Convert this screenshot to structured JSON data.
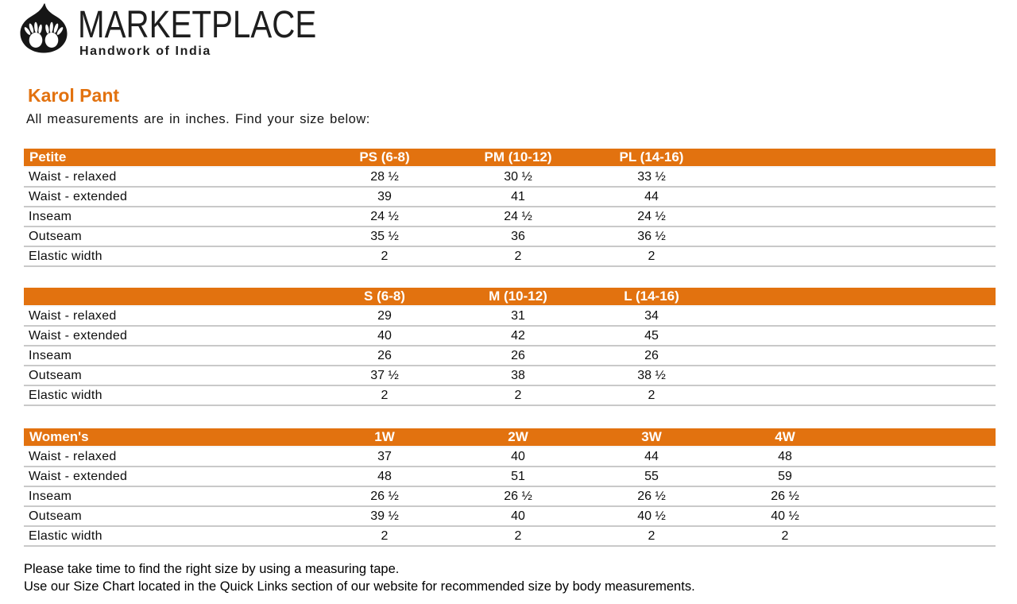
{
  "logo": {
    "brand": "MARKETPLACE",
    "tagline": "Handwork of India",
    "icon": "leaf-with-hands"
  },
  "page": {
    "title": "Karol Pant",
    "subtitle": "All measurements are in inches. Find your size below:",
    "accent_color": "#e2720f"
  },
  "tables": [
    {
      "header": [
        "Petite",
        "PS (6-8)",
        "PM (10-12)",
        "PL (14-16)"
      ],
      "rows": [
        [
          "Waist - relaxed",
          "28 ½",
          "30 ½",
          "33 ½"
        ],
        [
          "Waist - extended",
          "39",
          "41",
          "44"
        ],
        [
          "Inseam",
          "24 ½",
          "24 ½",
          "24 ½"
        ],
        [
          "Outseam",
          "35 ½",
          "36",
          "36 ½"
        ],
        [
          "Elastic width",
          "2",
          "2",
          "2"
        ]
      ]
    },
    {
      "header": [
        "",
        "S (6-8)",
        "M (10-12)",
        "L (14-16)"
      ],
      "rows": [
        [
          "Waist - relaxed",
          "29",
          "31",
          "34"
        ],
        [
          "Waist - extended",
          "40",
          "42",
          "45"
        ],
        [
          "Inseam",
          "26",
          "26",
          "26"
        ],
        [
          "Outseam",
          "37 ½",
          "38",
          "38 ½"
        ],
        [
          "Elastic width",
          "2",
          "2",
          "2"
        ]
      ]
    },
    {
      "header": [
        "Women's",
        "1W",
        "2W",
        "3W",
        "4W"
      ],
      "rows": [
        [
          "Waist - relaxed",
          "37",
          "40",
          "44",
          "48"
        ],
        [
          "Waist - extended",
          "48",
          "51",
          "55",
          "59"
        ],
        [
          "Inseam",
          "26 ½",
          "26 ½",
          "26 ½",
          "26 ½"
        ],
        [
          "Outseam",
          "39 ½",
          "40",
          "40 ½",
          "40 ½"
        ],
        [
          "Elastic width",
          "2",
          "2",
          "2",
          "2"
        ]
      ]
    }
  ],
  "footer": {
    "line1": "Please take time to find the right size by using a measuring tape.",
    "line2": "Use our Size Chart located in the Quick Links section of our website for recommended size by body measurements."
  }
}
